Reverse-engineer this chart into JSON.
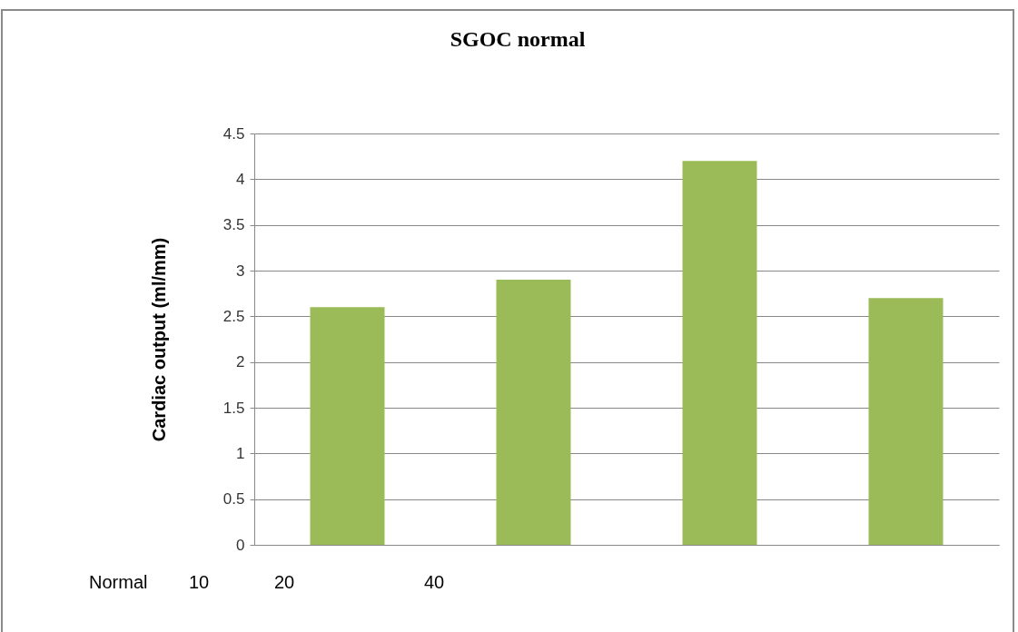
{
  "chart_data": {
    "type": "bar",
    "title": "SGOC normal",
    "ylabel": "Cardiac output (ml/mm)",
    "categories": [
      null,
      null,
      null,
      null
    ],
    "values": [
      2.6,
      2.9,
      4.2,
      2.7
    ],
    "color": "#9bbb59",
    "ylim": [
      0,
      4.5
    ],
    "yticks": [
      0,
      0.5,
      1,
      1.5,
      2,
      2.5,
      3,
      3.5,
      4,
      4.5
    ],
    "grid": "y",
    "annotations": [
      "Normal",
      "10",
      "20",
      "40"
    ]
  }
}
